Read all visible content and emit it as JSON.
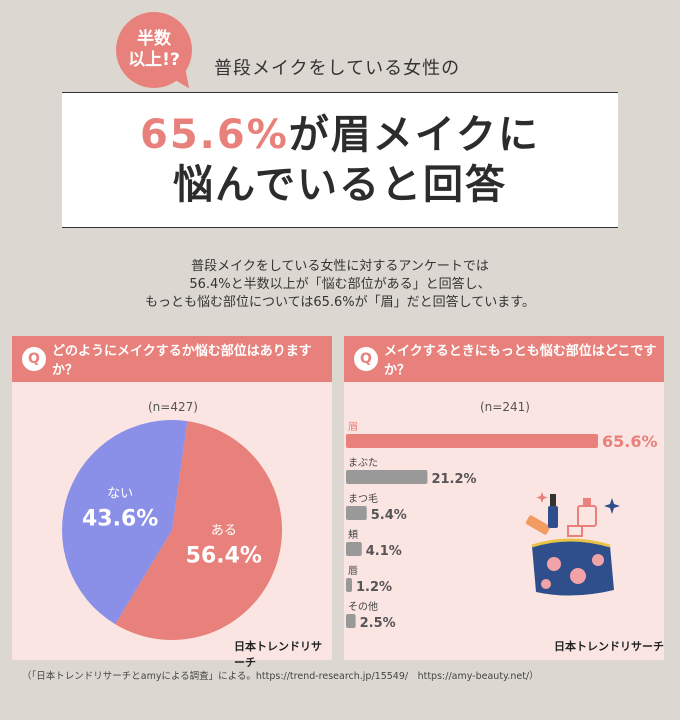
{
  "badge": {
    "line1": "半数",
    "line2": "以上!?"
  },
  "subtitle": "普段メイクをしている女性の",
  "headline": {
    "pct": "65.6%",
    "line1_rest": "が眉メイクに",
    "line2": "悩んでいると回答"
  },
  "intro": {
    "line1": "普段メイクをしている女性に対するアンケートでは",
    "line2": "56.4%と半数以上が「悩む部位がある」と回答し、",
    "line3": "もっとも悩む部位については65.6%が「眉」だと回答しています。"
  },
  "left_panel": {
    "q_icon": "Q",
    "question": "どのようにメイクするか悩む部位はありますか？",
    "n": "(n=427)",
    "brand": "日本トレンドリサーチ"
  },
  "right_panel": {
    "q_icon": "Q",
    "question": "メイクするときにもっとも悩む部位はどこですか？",
    "n": "(n=241)",
    "brand": "日本トレンドリサーチ"
  },
  "footnote": "（「日本トレンドリサーチとamyによる調査」による。https://trend-research.jp/15549/　https://amy-beauty.net/）",
  "colors": {
    "accent": "#e8817b",
    "blue": "#8a8fe8",
    "gray": "#999999",
    "panel": "#fbe5e3"
  },
  "chart_data": [
    {
      "type": "pie",
      "slices": [
        {
          "label": "ある",
          "value": 56.4,
          "display": "56.4%",
          "color": "#e8817b"
        },
        {
          "label": "ない",
          "value": 43.6,
          "display": "43.6%",
          "color": "#8a8fe8"
        }
      ]
    },
    {
      "type": "bar",
      "orientation": "horizontal",
      "categories": [
        "眉",
        "まぶた",
        "まつ毛",
        "頬",
        "唇",
        "その他"
      ],
      "values": [
        65.6,
        21.2,
        5.4,
        4.1,
        1.2,
        2.5
      ],
      "labels": [
        "65.6%",
        "21.2%",
        "5.4%",
        "4.1%",
        "1.2%",
        "2.5%"
      ],
      "highlight_color": "#e8817b",
      "bar_color": "#999999"
    }
  ]
}
